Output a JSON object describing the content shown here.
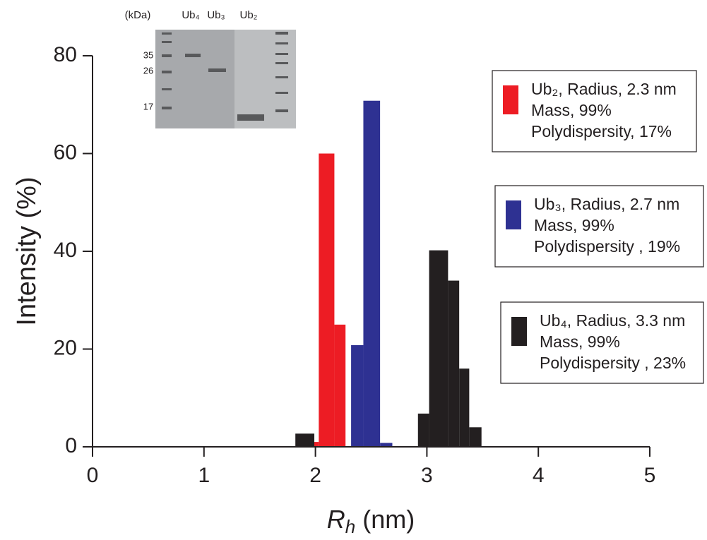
{
  "chart_data": {
    "type": "histogram",
    "y_label": "Intensity (%)",
    "x_label": {
      "symbol": "R",
      "subscript": "h",
      "unit": "(nm)"
    },
    "xlim": [
      0,
      5
    ],
    "xticks": [
      0,
      1,
      2,
      3,
      4,
      5
    ],
    "ylim": [
      0,
      80
    ],
    "yticks": [
      0,
      20,
      40,
      60,
      80
    ],
    "series": [
      {
        "name": "Ub₂, Radius, 2.3 nm",
        "details": [
          "Mass, 99%",
          "Polydispersity, 17%"
        ],
        "color": "#ed1c24",
        "bins": [
          1.99,
          2.03,
          2.17,
          2.27
        ],
        "values": [
          1,
          60,
          25
        ]
      },
      {
        "name": "Ub₃, Radius, 2.7 nm",
        "details": [
          "Mass, 99%",
          "Polydispersity , 19%"
        ],
        "color": "#2e3192",
        "bins": [
          2.32,
          2.43,
          2.58,
          2.69
        ],
        "values": [
          20.8,
          70.8,
          0.8
        ]
      },
      {
        "name": "Ub₄, Radius, 3.3 nm",
        "details": [
          "Mass, 99%",
          "Polydispersity , 23%"
        ],
        "color": "#231f20",
        "bins": [
          1.82,
          1.99,
          2.92,
          3.02,
          3.19,
          3.29,
          3.38,
          3.49
        ],
        "values": [
          2.7,
          null,
          6.8,
          40.2,
          34,
          16,
          4
        ]
      }
    ],
    "inset": {
      "unit": "(kDa)",
      "lanes": [
        "Ub₄",
        "Ub₃",
        "Ub₂"
      ],
      "markers": [
        "35",
        "26",
        "17"
      ]
    }
  }
}
